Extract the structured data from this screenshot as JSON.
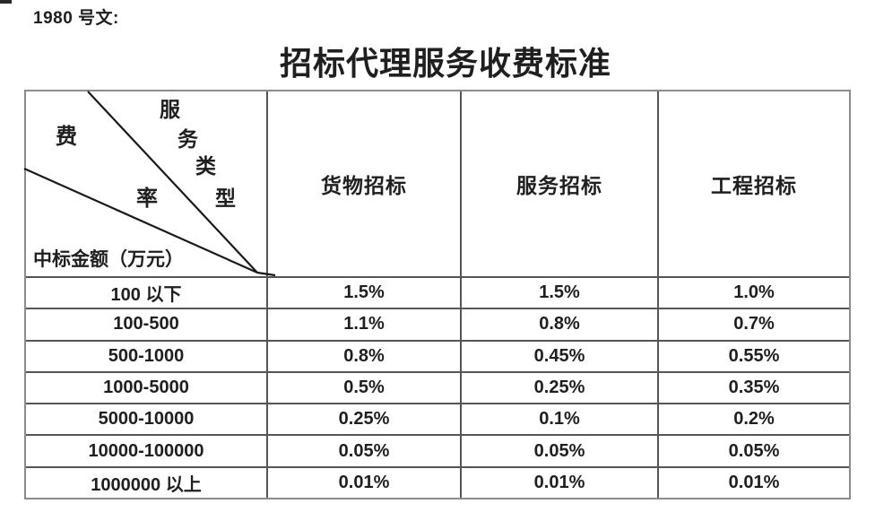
{
  "page": {
    "doc_number": "1980 号文:",
    "title": "招标代理服务收费标准"
  },
  "table": {
    "corner": {
      "service_type_chars": [
        "服",
        "务",
        "类",
        "型"
      ],
      "fee_rate_chars": [
        "费",
        "率"
      ],
      "row_axis_label": "中标金额（万元）"
    },
    "columns": [
      "货物招标",
      "服务招标",
      "工程招标"
    ],
    "rows": [
      {
        "label": "100 以下",
        "values": [
          "1.5%",
          "1.5%",
          "1.0%"
        ]
      },
      {
        "label": "100-500",
        "values": [
          "1.1%",
          "0.8%",
          "0.7%"
        ]
      },
      {
        "label": "500-1000",
        "values": [
          "0.8%",
          "0.45%",
          "0.55%"
        ]
      },
      {
        "label": "1000-5000",
        "values": [
          "0.5%",
          "0.25%",
          "0.35%"
        ]
      },
      {
        "label": "5000-10000",
        "values": [
          "0.25%",
          "0.1%",
          "0.2%"
        ]
      },
      {
        "label": "10000-100000",
        "values": [
          "0.05%",
          "0.05%",
          "0.05%"
        ]
      },
      {
        "label": "1000000 以上",
        "values": [
          "0.01%",
          "0.01%",
          "0.01%"
        ]
      }
    ]
  },
  "colors": {
    "text": "#1f1f1f",
    "outer_border": "#8c8c8c",
    "inner_border": "#555555",
    "diagonal_line": "#1a1a1a",
    "background": "#ffffff"
  }
}
